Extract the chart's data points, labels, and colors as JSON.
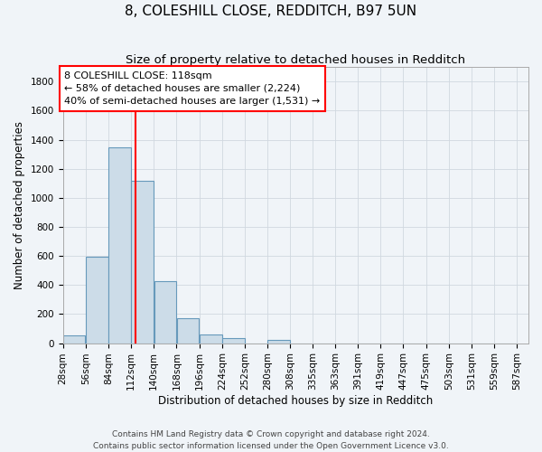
{
  "title": "8, COLESHILL CLOSE, REDDITCH, B97 5UN",
  "subtitle": "Size of property relative to detached houses in Redditch",
  "xlabel": "Distribution of detached houses by size in Redditch",
  "ylabel": "Number of detached properties",
  "bin_starts": [
    28,
    56,
    84,
    112,
    140,
    168,
    196,
    224,
    252,
    280,
    308,
    335,
    363,
    391,
    419,
    447,
    475,
    503,
    531,
    559
  ],
  "bar_heights": [
    55,
    595,
    1350,
    1120,
    425,
    170,
    60,
    35,
    0,
    20,
    0,
    0,
    0,
    0,
    0,
    0,
    0,
    0,
    0,
    0
  ],
  "bin_width": 28,
  "bar_color": "#ccdce8",
  "bar_edge_color": "#6699bb",
  "grid_color": "#d0d8e0",
  "bg_color": "#f0f4f8",
  "vline_x": 118,
  "vline_color": "red",
  "annotation_text_line1": "8 COLESHILL CLOSE: 118sqm",
  "annotation_text_line2": "← 58% of detached houses are smaller (2,224)",
  "annotation_text_line3": "40% of semi-detached houses are larger (1,531) →",
  "ylim": [
    0,
    1900
  ],
  "yticks": [
    0,
    200,
    400,
    600,
    800,
    1000,
    1200,
    1400,
    1600,
    1800
  ],
  "xtick_labels": [
    "28sqm",
    "56sqm",
    "84sqm",
    "112sqm",
    "140sqm",
    "168sqm",
    "196sqm",
    "224sqm",
    "252sqm",
    "280sqm",
    "308sqm",
    "335sqm",
    "363sqm",
    "391sqm",
    "419sqm",
    "447sqm",
    "475sqm",
    "503sqm",
    "531sqm",
    "559sqm",
    "587sqm"
  ],
  "footnote_line1": "Contains HM Land Registry data © Crown copyright and database right 2024.",
  "footnote_line2": "Contains public sector information licensed under the Open Government Licence v3.0.",
  "title_fontsize": 11,
  "subtitle_fontsize": 9.5,
  "axis_label_fontsize": 8.5,
  "tick_fontsize": 7.5,
  "footnote_fontsize": 6.5,
  "annotation_fontsize": 8
}
